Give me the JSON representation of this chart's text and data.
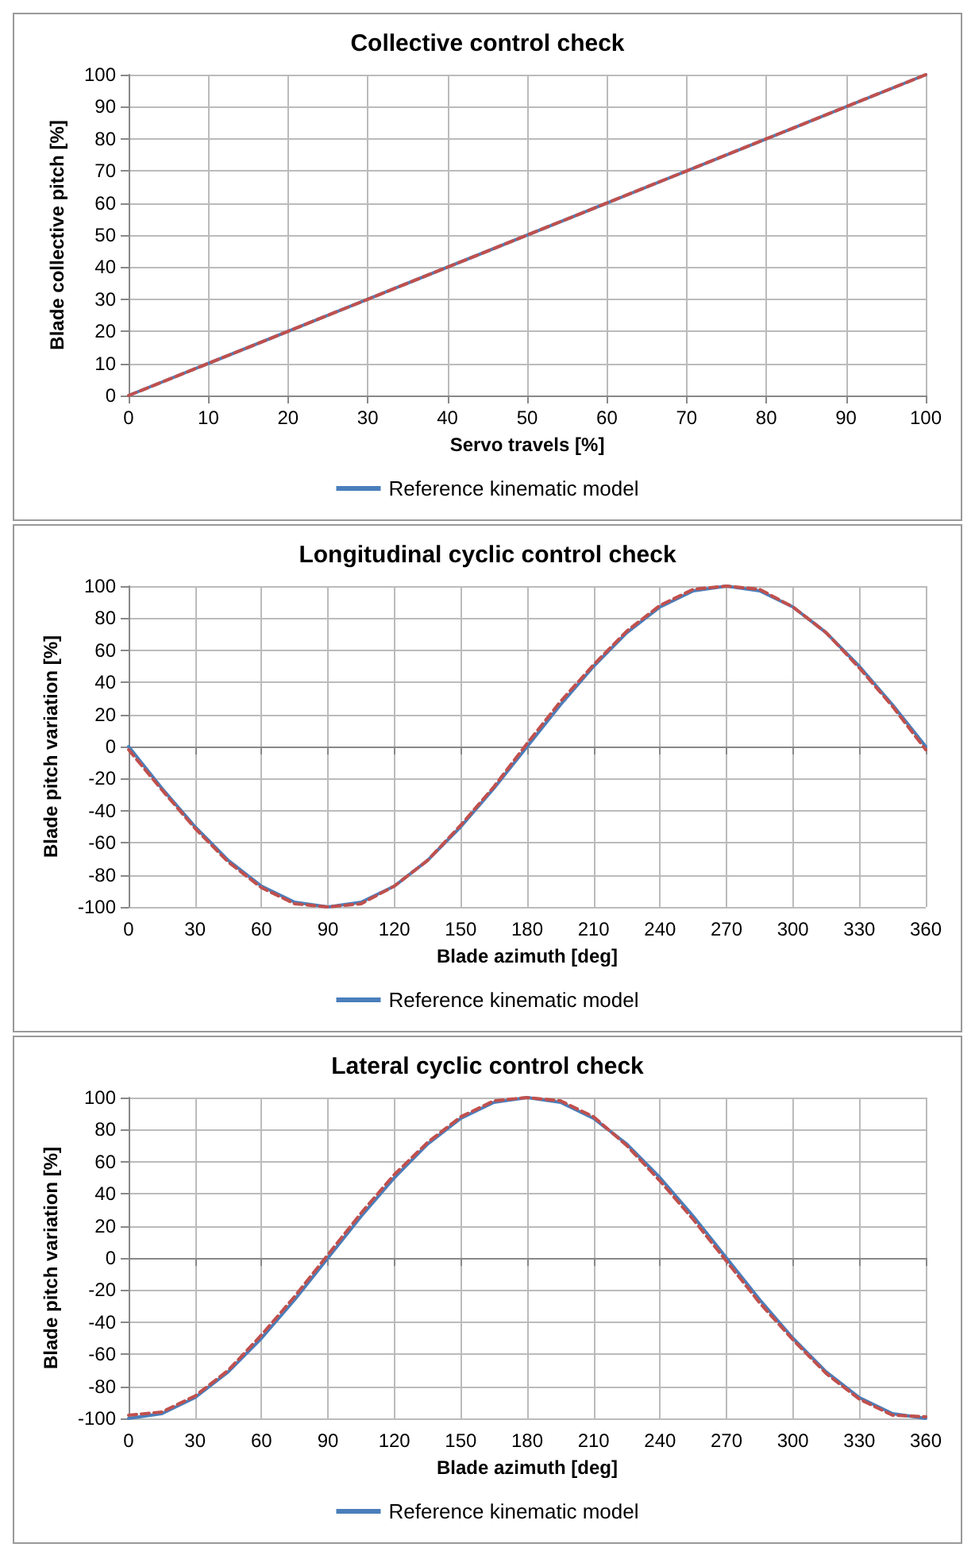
{
  "chart_data": [
    {
      "type": "line",
      "title": "Collective control check",
      "xlabel": "Servo travels [%]",
      "ylabel": "Blade collective pitch [%]",
      "xlim": [
        0,
        100
      ],
      "xticks": [
        0,
        10,
        20,
        30,
        40,
        50,
        60,
        70,
        80,
        90,
        100
      ],
      "ylim": [
        0,
        100
      ],
      "yticks": [
        0,
        10,
        20,
        30,
        40,
        50,
        60,
        70,
        80,
        90,
        100
      ],
      "grid": true,
      "legend": "bottom",
      "marker": "none",
      "series": [
        {
          "name": "Reference kinematic model",
          "color": "#4a7ebb",
          "line_style": "solid",
          "x": [
            0,
            100
          ],
          "values": [
            0,
            100
          ]
        },
        {
          "color": "#c0504d",
          "line_style": "dashed",
          "x": [
            0,
            100
          ],
          "values": [
            0,
            100
          ]
        }
      ]
    },
    {
      "type": "line",
      "title": "Longitudinal cyclic control check",
      "xlabel": "Blade azimuth [deg]",
      "ylabel": "Blade pitch variation [%]",
      "xlim": [
        0,
        360
      ],
      "xticks": [
        0,
        30,
        60,
        90,
        120,
        150,
        180,
        210,
        240,
        270,
        300,
        330,
        360
      ],
      "ylim": [
        -100,
        100
      ],
      "yticks": [
        -100,
        -80,
        -60,
        -40,
        -20,
        0,
        20,
        40,
        60,
        80,
        100
      ],
      "grid": true,
      "legend": "bottom",
      "marker": "none",
      "series": [
        {
          "name": "Reference kinematic model",
          "color": "#4a7ebb",
          "line_style": "solid",
          "x": [
            0,
            15,
            30,
            45,
            60,
            75,
            90,
            105,
            120,
            135,
            150,
            165,
            180,
            195,
            210,
            225,
            240,
            255,
            270,
            285,
            300,
            315,
            330,
            345,
            360
          ],
          "values": [
            0,
            -26,
            -50,
            -71,
            -87,
            -97,
            -100,
            -97,
            -87,
            -71,
            -50,
            -26,
            0,
            26,
            50,
            71,
            87,
            97,
            100,
            97,
            87,
            71,
            50,
            26,
            0
          ]
        },
        {
          "color": "#c0504d",
          "line_style": "dashed",
          "x": [
            0,
            15,
            30,
            45,
            60,
            75,
            90,
            105,
            120,
            135,
            150,
            165,
            180,
            195,
            210,
            225,
            240,
            255,
            270,
            285,
            300,
            315,
            330,
            345,
            360
          ],
          "values": [
            -2,
            -27,
            -51,
            -72,
            -88,
            -98,
            -100,
            -98,
            -87,
            -71,
            -49,
            -25,
            2,
            28,
            51,
            72,
            88,
            98,
            100,
            98,
            87,
            71,
            49,
            25,
            -2
          ]
        }
      ]
    },
    {
      "type": "line",
      "title": "Lateral cyclic control check",
      "xlabel": "Blade azimuth [deg]",
      "ylabel": "Blade pitch variation [%]",
      "xlim": [
        0,
        360
      ],
      "xticks": [
        0,
        30,
        60,
        90,
        120,
        150,
        180,
        210,
        240,
        270,
        300,
        330,
        360
      ],
      "ylim": [
        -100,
        100
      ],
      "yticks": [
        -100,
        -80,
        -60,
        -40,
        -20,
        0,
        20,
        40,
        60,
        80,
        100
      ],
      "grid": true,
      "legend": "bottom",
      "marker": "none",
      "series": [
        {
          "name": "Reference kinematic model",
          "color": "#4a7ebb",
          "line_style": "solid",
          "x": [
            0,
            15,
            30,
            45,
            60,
            75,
            90,
            105,
            120,
            135,
            150,
            165,
            180,
            195,
            210,
            225,
            240,
            255,
            270,
            285,
            300,
            315,
            330,
            345,
            360
          ],
          "values": [
            -100,
            -97,
            -87,
            -71,
            -50,
            -26,
            0,
            26,
            50,
            71,
            87,
            97,
            100,
            97,
            87,
            71,
            50,
            26,
            0,
            -26,
            -50,
            -71,
            -87,
            -97,
            -100
          ]
        },
        {
          "color": "#c0504d",
          "line_style": "dashed",
          "x": [
            0,
            15,
            30,
            45,
            60,
            75,
            90,
            105,
            120,
            135,
            150,
            165,
            180,
            195,
            210,
            225,
            240,
            255,
            270,
            285,
            300,
            315,
            330,
            345,
            360
          ],
          "values": [
            -98,
            -96,
            -86,
            -70,
            -48,
            -24,
            2,
            28,
            52,
            72,
            88,
            98,
            100,
            98,
            88,
            70,
            48,
            24,
            -2,
            -28,
            -51,
            -72,
            -88,
            -98,
            -99
          ]
        }
      ]
    }
  ]
}
